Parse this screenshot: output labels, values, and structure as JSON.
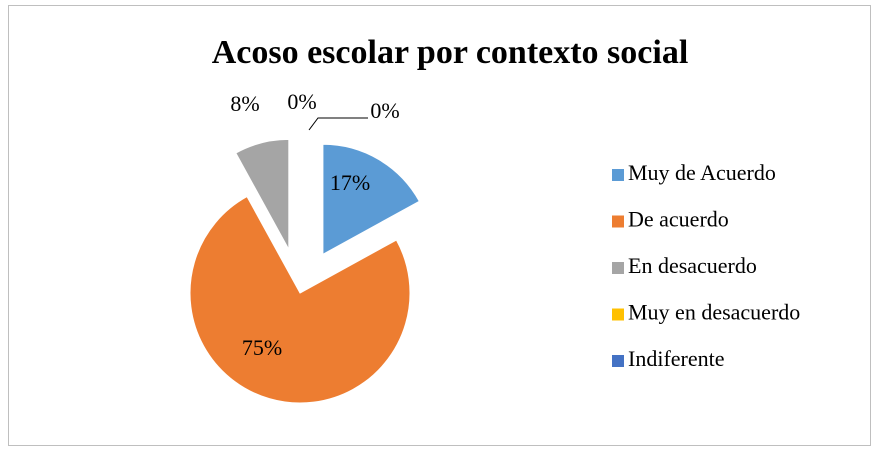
{
  "chart_data": {
    "type": "pie",
    "title": "Acoso escolar por contexto social",
    "categories": [
      "Muy de Acuerdo",
      "De acuerdo",
      "En desacuerdo",
      "Muy en desacuerdo",
      "Indiferente"
    ],
    "values": [
      17,
      75,
      8,
      0,
      0
    ],
    "value_labels": [
      "17%",
      "75%",
      "8%",
      "0%",
      "0%"
    ],
    "colors": [
      "#5b9bd5",
      "#ed7d31",
      "#a5a5a5",
      "#ffc000",
      "#4472c4"
    ],
    "legend": "right"
  }
}
